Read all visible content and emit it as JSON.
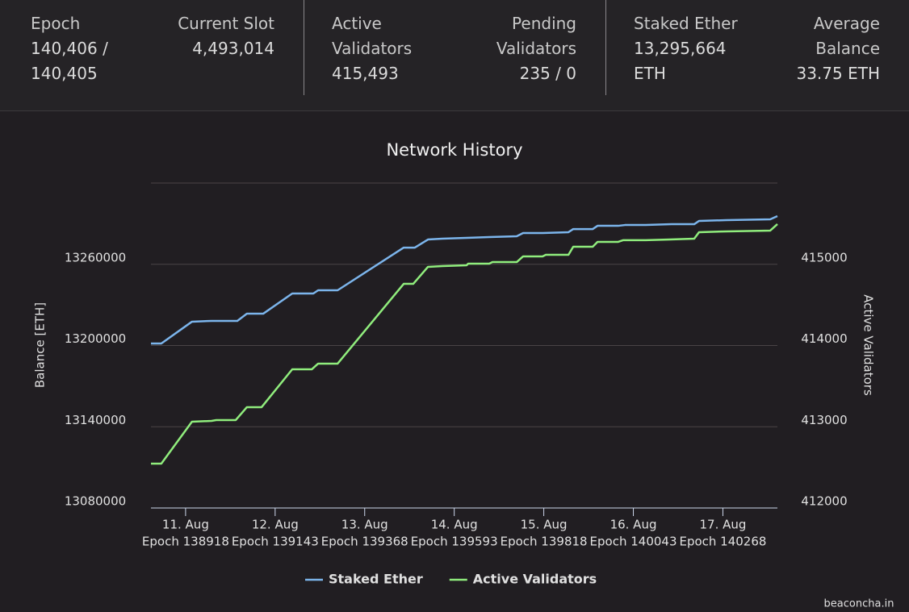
{
  "stats": [
    {
      "label": "Epoch",
      "value": "140,406 / 140,405"
    },
    {
      "label": "Current Slot",
      "value": "4,493,014"
    },
    {
      "label": "Active Validators",
      "value": "415,493"
    },
    {
      "label": "Pending Validators",
      "value": "235 / 0"
    },
    {
      "label": "Staked Ether",
      "value": "13,295,664 ETH"
    },
    {
      "label": "Average Balance",
      "value": "33.75 ETH"
    }
  ],
  "chart_data": {
    "type": "line",
    "title": "Network History",
    "y_label": "Balance [ETH]",
    "y2_label": "Active Validators",
    "watermark": "beaconcha.in",
    "xlim": [
      138831,
      140405
    ],
    "xticks": [
      {
        "value": 138918,
        "label": "11. Aug"
      },
      {
        "value": 139143,
        "label": "12. Aug"
      },
      {
        "value": 139368,
        "label": "13. Aug"
      },
      {
        "value": 139593,
        "label": "14. Aug"
      },
      {
        "value": 139818,
        "label": "15. Aug"
      },
      {
        "value": 140043,
        "label": "16. Aug"
      },
      {
        "value": 140268,
        "label": "17. Aug"
      }
    ],
    "xtick_sublabels": [
      "Epoch 138918",
      "Epoch 139143",
      "Epoch 139368",
      "Epoch 139593",
      "Epoch 139818",
      "Epoch 140043",
      "Epoch 140268"
    ],
    "ylim": [
      13080000,
      13320000
    ],
    "yticks": [
      13080000,
      13140000,
      13200000,
      13260000
    ],
    "y2lim": [
      412000,
      416000
    ],
    "y2ticks": [
      412000,
      413000,
      414000,
      415000
    ],
    "grid": true,
    "legend": "bottom",
    "series": [
      {
        "name": "Staked Ether",
        "color": "#7cb5ec",
        "x": [
          138831,
          138857,
          138934,
          138983,
          139048,
          139072,
          139113,
          139186,
          139239,
          139251,
          139300,
          139466,
          139494,
          139527,
          139563,
          139624,
          139681,
          139750,
          139766,
          139815,
          139880,
          139892,
          139941,
          139953,
          140005,
          140022,
          140074,
          140139,
          140196,
          140208,
          140277,
          140387,
          140405
        ],
        "values": [
          13201500,
          13201500,
          13217600,
          13218200,
          13218200,
          13223500,
          13223500,
          13238400,
          13238400,
          13240800,
          13240800,
          13272300,
          13272300,
          13278300,
          13278900,
          13279500,
          13280100,
          13280700,
          13283100,
          13283100,
          13283700,
          13286000,
          13286000,
          13288400,
          13288400,
          13289000,
          13289000,
          13289600,
          13289600,
          13292000,
          13292600,
          13293200,
          13295600
        ]
      },
      {
        "name": "Active Validators",
        "color": "#90ed7d",
        "axis": "y2",
        "x": [
          138831,
          138857,
          138934,
          138983,
          138995,
          139044,
          139072,
          139109,
          139186,
          139235,
          139251,
          139300,
          139466,
          139490,
          139527,
          139563,
          139624,
          139628,
          139681,
          139689,
          139750,
          139766,
          139815,
          139823,
          139880,
          139892,
          139941,
          139953,
          140005,
          140017,
          140074,
          140135,
          140196,
          140208,
          140277,
          140387,
          140405
        ],
        "values": [
          412546,
          412546,
          413062,
          413072,
          413082,
          413082,
          413241,
          413241,
          413707,
          413707,
          413777,
          413777,
          414759,
          414759,
          414968,
          414978,
          414988,
          415008,
          415008,
          415027,
          415027,
          415097,
          415097,
          415117,
          415117,
          415216,
          415216,
          415276,
          415276,
          415296,
          415296,
          415305,
          415315,
          415395,
          415405,
          415415,
          415494
        ]
      }
    ]
  }
}
